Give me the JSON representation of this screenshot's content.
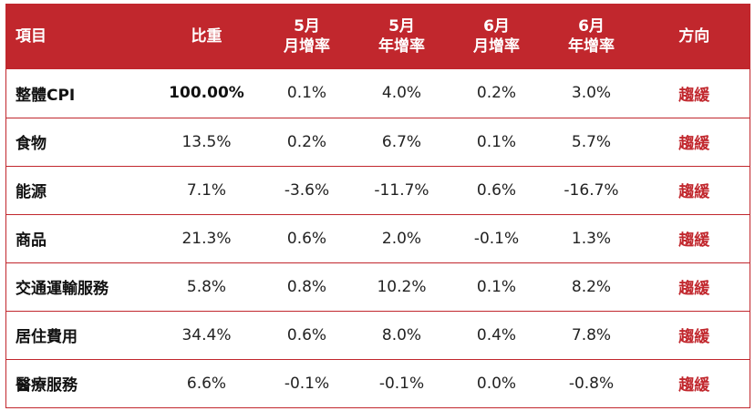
{
  "header": {
    "item": "項目",
    "weight": "比重",
    "may_mom": [
      "5月",
      "月增率"
    ],
    "may_yoy": [
      "5月",
      "年增率"
    ],
    "jun_mom": [
      "6月",
      "月增率"
    ],
    "jun_yoy": [
      "6月",
      "年增率"
    ],
    "direction": "方向"
  },
  "rows": [
    {
      "name": "整體CPI",
      "weight": "100.00%",
      "may_mom": "0.1%",
      "may_yoy": "4.0%",
      "jun_mom": "0.2%",
      "jun_yoy": "3.0%",
      "direction": "趨緩"
    },
    {
      "name": "食物",
      "weight": "13.5%",
      "may_mom": "0.2%",
      "may_yoy": "6.7%",
      "jun_mom": "0.1%",
      "jun_yoy": "5.7%",
      "direction": "趨緩"
    },
    {
      "name": "能源",
      "weight": "7.1%",
      "may_mom": "-3.6%",
      "may_yoy": "-11.7%",
      "jun_mom": "0.6%",
      "jun_yoy": "-16.7%",
      "direction": "趨緩"
    },
    {
      "name": "商品",
      "weight": "21.3%",
      "may_mom": "0.6%",
      "may_yoy": "2.0%",
      "jun_mom": "-0.1%",
      "jun_yoy": "1.3%",
      "direction": "趨緩"
    },
    {
      "name": "交通運輸服務",
      "weight": "5.8%",
      "may_mom": "0.8%",
      "may_yoy": "10.2%",
      "jun_mom": "0.1%",
      "jun_yoy": "8.2%",
      "direction": "趨緩"
    },
    {
      "name": "居住費用",
      "weight": "34.4%",
      "may_mom": "0.6%",
      "may_yoy": "8.0%",
      "jun_mom": "0.4%",
      "jun_yoy": "7.8%",
      "direction": "趨緩"
    },
    {
      "name": "醫療服務",
      "weight": "6.6%",
      "may_mom": "-0.1%",
      "may_yoy": "-0.1%",
      "jun_mom": "0.0%",
      "jun_yoy": "-0.8%",
      "direction": "趨緩"
    }
  ],
  "colors": {
    "header_bg": "#c1272d",
    "accent": "#c1272d"
  }
}
